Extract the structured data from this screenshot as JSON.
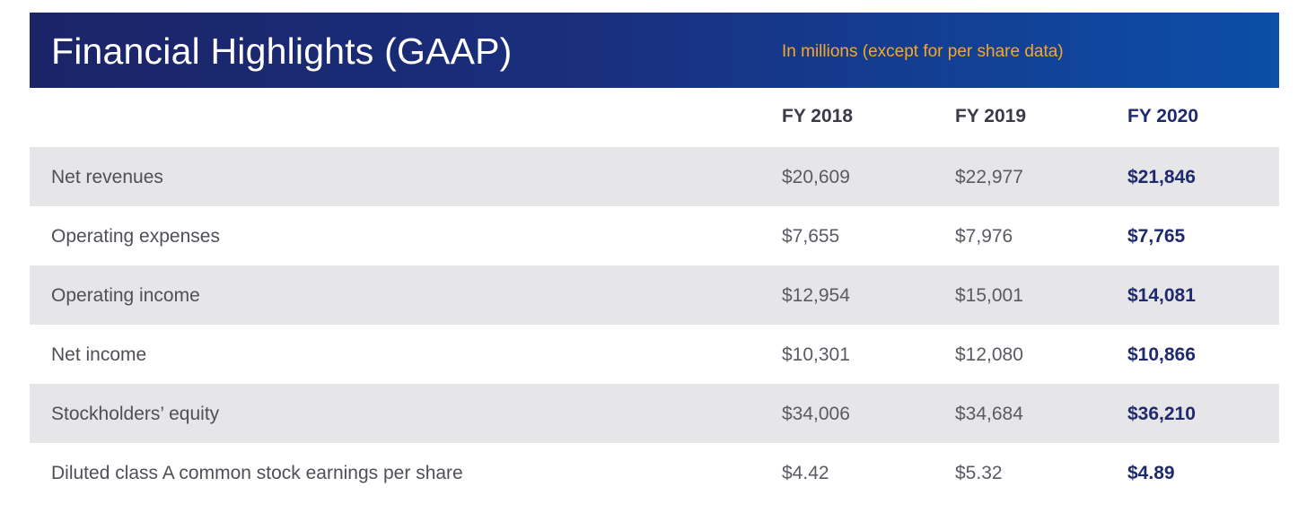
{
  "header": {
    "title": "Financial Highlights (GAAP)",
    "subtitle": "In millions (except for per share data)"
  },
  "columns": [
    "FY 2018",
    "FY 2019",
    "FY 2020"
  ],
  "rows": [
    {
      "label": "Net revenues",
      "fy2018": "$20,609",
      "fy2019": "$22,977",
      "fy2020": "$21,846"
    },
    {
      "label": "Operating expenses",
      "fy2018": "$7,655",
      "fy2019": "$7,976",
      "fy2020": "$7,765"
    },
    {
      "label": "Operating income",
      "fy2018": "$12,954",
      "fy2019": "$15,001",
      "fy2020": "$14,081"
    },
    {
      "label": "Net income",
      "fy2018": "$10,301",
      "fy2019": "$12,080",
      "fy2020": "$10,866"
    },
    {
      "label": "Stockholders’ equity",
      "fy2018": "$34,006",
      "fy2019": "$34,684",
      "fy2020": "$36,210"
    },
    {
      "label": "Diluted class A common stock earnings per share",
      "fy2018": "$4.42",
      "fy2019": "$5.32",
      "fy2020": "$4.89"
    }
  ],
  "colors": {
    "header_start": "#1b2467",
    "header_end": "#0c4ea8",
    "subtitle": "#f7a823",
    "row_shade": "#e6e5e7",
    "highlight": "#1f2a6e"
  }
}
